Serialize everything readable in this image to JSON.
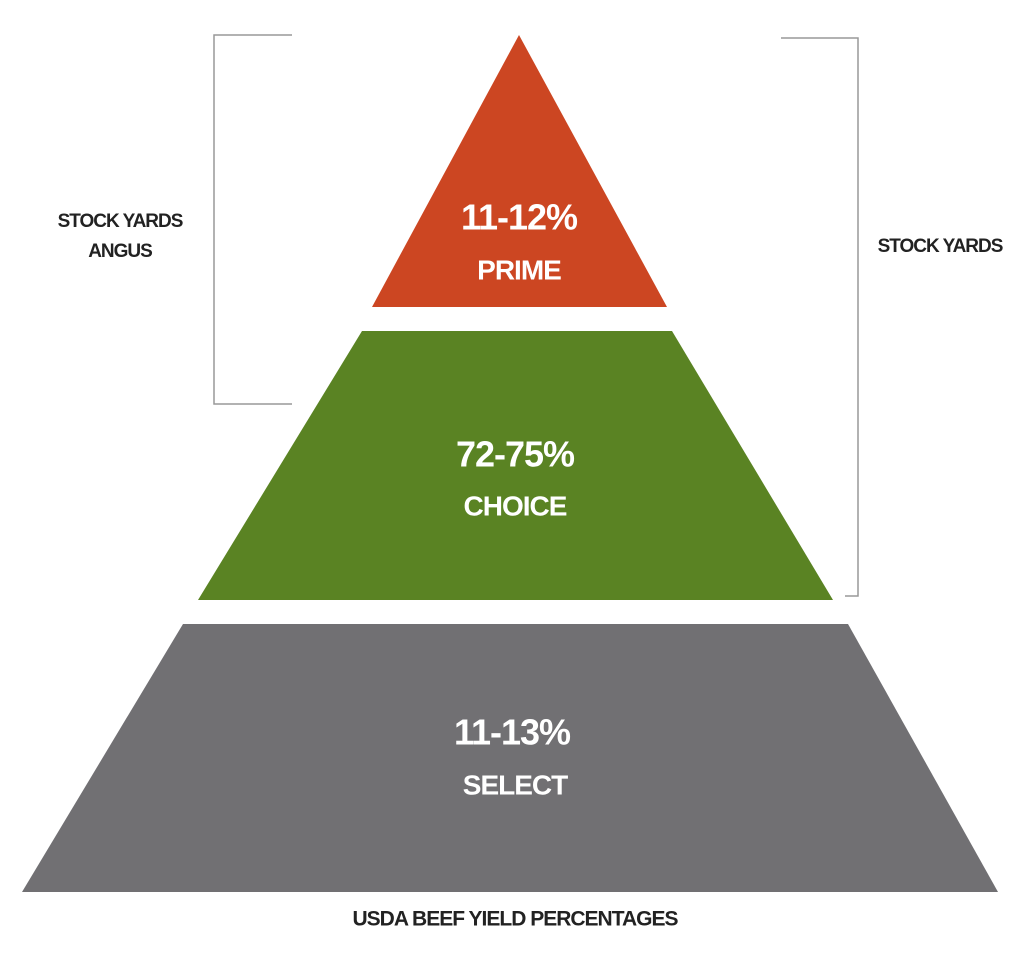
{
  "diagram": {
    "tiers": [
      {
        "percent": "11-12%",
        "grade": "PRIME"
      },
      {
        "percent": "72-75%",
        "grade": "CHOICE"
      },
      {
        "percent": "11-13%",
        "grade": "SELECT"
      }
    ],
    "left_bracket": {
      "lines": [
        "STOCK YARDS",
        "ANGUS"
      ]
    },
    "right_bracket": {
      "label": "STOCK YARDS"
    },
    "caption": "USDA BEEF YIELD PERCENTAGES"
  }
}
